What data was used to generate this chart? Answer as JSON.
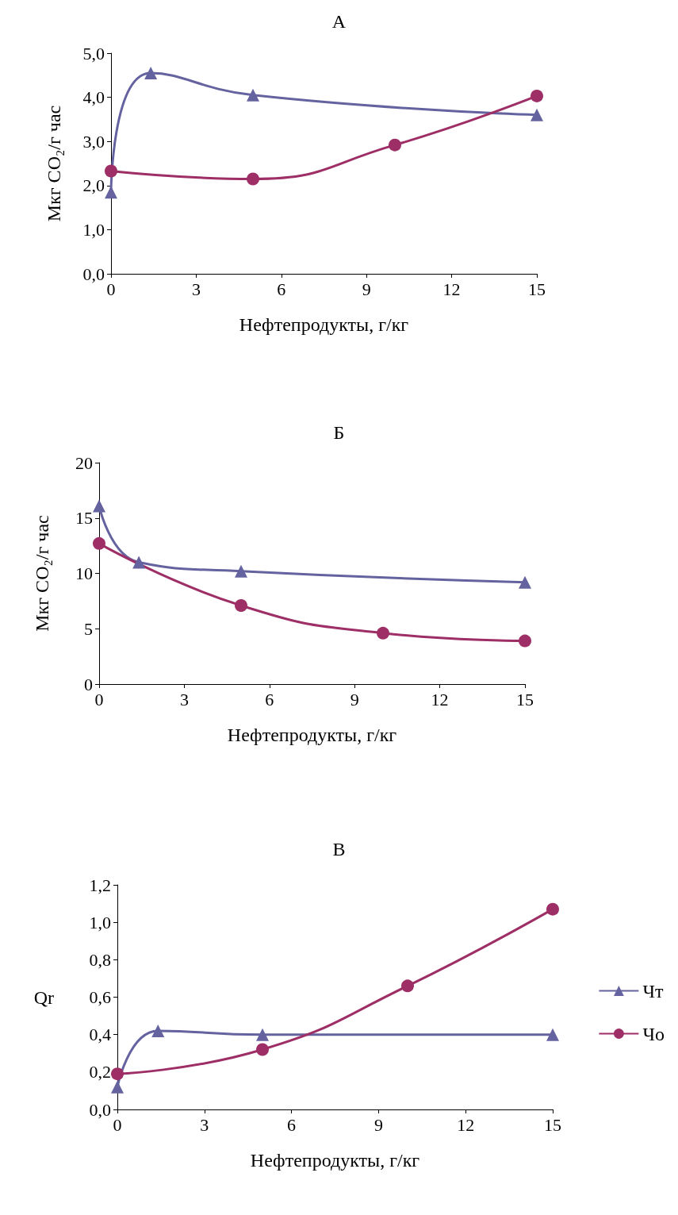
{
  "chart_data": [
    {
      "type": "line",
      "title": "А",
      "xlabel": "Нефтепродукты, г/кг",
      "ylabel": "Мкг CO₂/г час",
      "xlim": [
        0,
        15
      ],
      "xticks": [
        0,
        3,
        6,
        9,
        12,
        15
      ],
      "ylim": [
        0,
        5
      ],
      "yticks": [
        {
          "value": 0,
          "label": "0,0"
        },
        {
          "value": 1,
          "label": "1,0"
        },
        {
          "value": 2,
          "label": "2,0"
        },
        {
          "value": 3,
          "label": "3,0"
        },
        {
          "value": 4,
          "label": "4,0"
        },
        {
          "value": 5,
          "label": "5,0"
        }
      ],
      "grid": false,
      "legend": false,
      "series": [
        {
          "color": "#65639f",
          "marker": "triangle",
          "x": [
            0,
            1.4,
            5,
            15
          ],
          "values": [
            1.85,
            4.55,
            4.05,
            3.6
          ]
        },
        {
          "color": "#9e2e66",
          "marker": "circle",
          "x": [
            0,
            5,
            10,
            15
          ],
          "values": [
            2.33,
            2.15,
            2.92,
            4.03
          ]
        }
      ]
    },
    {
      "type": "line",
      "title": "Б",
      "xlabel": "Нефтепродукты, г/кг",
      "ylabel": "Мкг CO₂/г час",
      "xlim": [
        0,
        15
      ],
      "xticks": [
        0,
        3,
        6,
        9,
        12,
        15
      ],
      "ylim": [
        0,
        20
      ],
      "yticks": [
        0,
        5,
        10,
        15,
        20
      ],
      "grid": false,
      "legend": false,
      "series": [
        {
          "color": "#65639f",
          "marker": "triangle",
          "x": [
            0,
            1.4,
            5,
            15
          ],
          "values": [
            16.1,
            11,
            10.2,
            9.2
          ]
        },
        {
          "color": "#9e2e66",
          "marker": "circle",
          "x": [
            0,
            5,
            10,
            15
          ],
          "values": [
            12.7,
            7.1,
            4.6,
            3.9
          ]
        }
      ]
    },
    {
      "type": "line",
      "title": "В",
      "xlabel": "Нефтепродукты, г/кг",
      "ylabel": "Qr",
      "xlim": [
        0,
        15
      ],
      "xticks": [
        0,
        3,
        6,
        9,
        12,
        15
      ],
      "ylim": [
        0,
        1.2
      ],
      "yticks": [
        {
          "value": 0,
          "label": "0,0"
        },
        {
          "value": 0.2,
          "label": "0,2"
        },
        {
          "value": 0.4,
          "label": "0,4"
        },
        {
          "value": 0.6,
          "label": "0,6"
        },
        {
          "value": 0.8,
          "label": "0,8"
        },
        {
          "value": 1,
          "label": "1,0"
        },
        {
          "value": 1.2,
          "label": "1,2"
        }
      ],
      "grid": false,
      "legend": "right",
      "series": [
        {
          "name": "Чт",
          "color": "#65639f",
          "marker": "triangle",
          "x": [
            0,
            1.4,
            5,
            15
          ],
          "values": [
            0.12,
            0.42,
            0.4,
            0.4
          ]
        },
        {
          "name": "Чо",
          "color": "#9e2e66",
          "marker": "circle",
          "x": [
            0,
            5,
            10,
            15
          ],
          "values": [
            0.19,
            0.32,
            0.66,
            1.07
          ]
        }
      ]
    }
  ]
}
